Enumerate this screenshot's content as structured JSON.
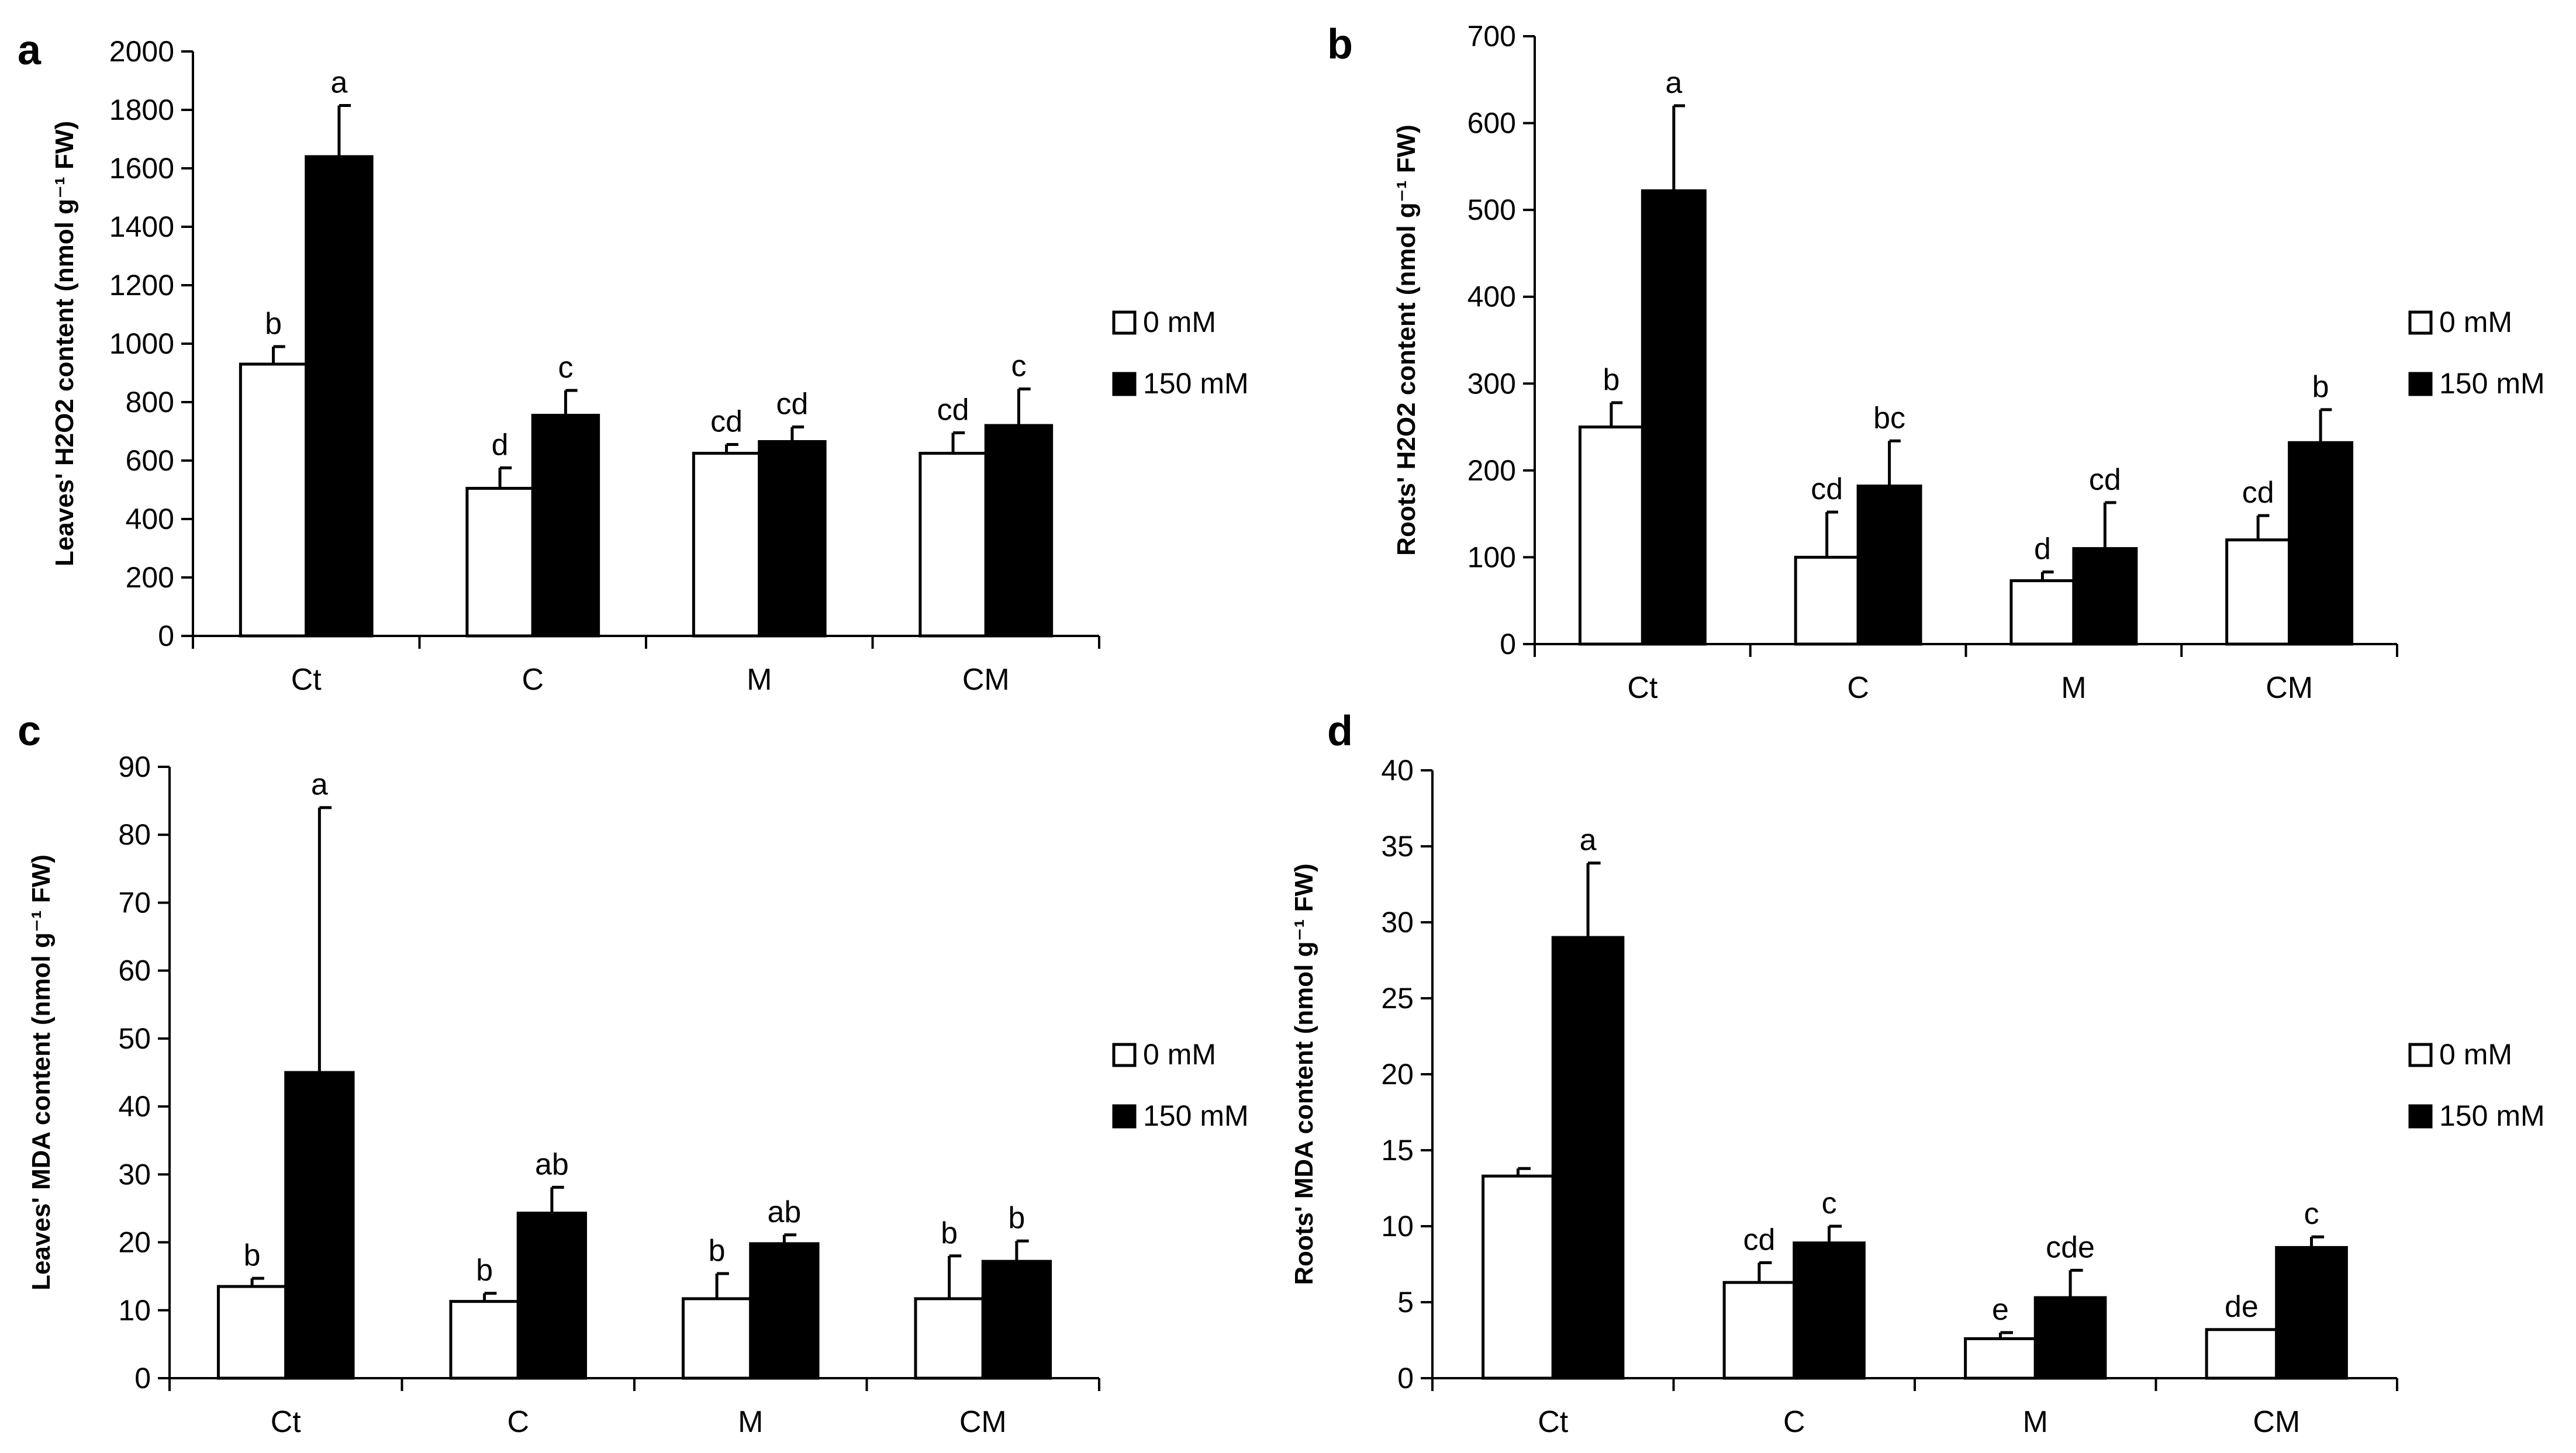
{
  "chart_data": [
    {
      "panel": "a",
      "type": "bar",
      "title": "",
      "xlabel": "",
      "ylabel": "Leaves' H2O2 content (nmol g⁻¹ FW)",
      "ylim": [
        0,
        2000
      ],
      "yticks": [
        0,
        200,
        400,
        600,
        800,
        1000,
        1200,
        1400,
        1600,
        1800,
        2000
      ],
      "categories": [
        "Ct",
        "C",
        "M",
        "CM"
      ],
      "legend": [
        "0 mM",
        "150 mM"
      ],
      "series": [
        {
          "name": "0 mM",
          "values": [
            930,
            505,
            625,
            625
          ],
          "errors": [
            60,
            70,
            30,
            70
          ],
          "letters": [
            "b",
            "d",
            "cd",
            "cd"
          ]
        },
        {
          "name": "150 mM",
          "values": [
            1640,
            755,
            665,
            720
          ],
          "errors": [
            175,
            85,
            50,
            125
          ],
          "letters": [
            "a",
            "c",
            "cd",
            "c"
          ]
        }
      ]
    },
    {
      "panel": "b",
      "type": "bar",
      "title": "",
      "xlabel": "",
      "ylabel": "Roots' H2O2 content (nmol g⁻¹ FW)",
      "ylim": [
        0,
        700
      ],
      "yticks": [
        0,
        100,
        200,
        300,
        400,
        500,
        600,
        700
      ],
      "categories": [
        "Ct",
        "C",
        "M",
        "CM"
      ],
      "legend": [
        "0 mM",
        "150 mM"
      ],
      "series": [
        {
          "name": "0 mM",
          "values": [
            250,
            100,
            73,
            120
          ],
          "errors": [
            28,
            52,
            10,
            28
          ],
          "letters": [
            "b",
            "cd",
            "d",
            "cd"
          ]
        },
        {
          "name": "150 mM",
          "values": [
            522,
            182,
            110,
            232
          ],
          "errors": [
            98,
            52,
            53,
            38
          ],
          "letters": [
            "a",
            "bc",
            "cd",
            "b"
          ]
        }
      ]
    },
    {
      "panel": "c",
      "type": "bar",
      "title": "",
      "xlabel": "",
      "ylabel": "Leaves' MDA content (nmol g⁻¹ FW)",
      "ylim": [
        0,
        90
      ],
      "yticks": [
        0,
        10,
        20,
        30,
        40,
        50,
        60,
        70,
        80,
        90
      ],
      "categories": [
        "Ct",
        "C",
        "M",
        "CM"
      ],
      "legend": [
        "0 mM",
        "150 mM"
      ],
      "series": [
        {
          "name": "0 mM",
          "values": [
            13.5,
            11.3,
            11.7,
            11.7
          ],
          "errors": [
            1.2,
            1.2,
            3.7,
            6.3
          ],
          "letters": [
            "b",
            "b",
            "b",
            "b"
          ]
        },
        {
          "name": "150 mM",
          "values": [
            45,
            24.3,
            19.8,
            17.2
          ],
          "errors": [
            39,
            3.8,
            1.3,
            3.0
          ],
          "letters": [
            "a",
            "ab",
            "ab",
            "b"
          ]
        }
      ]
    },
    {
      "panel": "d",
      "type": "bar",
      "title": "",
      "xlabel": "",
      "ylabel": "Roots' MDA content (nmol g⁻¹ FW)",
      "ylim": [
        0,
        40
      ],
      "yticks": [
        0,
        5,
        10,
        15,
        20,
        25,
        30,
        35,
        40
      ],
      "categories": [
        "Ct",
        "C",
        "M",
        "CM"
      ],
      "legend": [
        "0 mM",
        "150 mM"
      ],
      "series": [
        {
          "name": "0 mM",
          "values": [
            13.3,
            6.3,
            2.6,
            3.2
          ],
          "errors": [
            0.5,
            1.3,
            0.4,
            0.0
          ],
          "letters": [
            "",
            "cd",
            "e",
            "de"
          ]
        },
        {
          "name": "150 mM",
          "values": [
            29,
            8.9,
            5.3,
            8.6
          ],
          "errors": [
            4.9,
            1.1,
            1.8,
            0.7
          ],
          "letters": [
            "a",
            "c",
            "cde",
            "c"
          ]
        }
      ]
    }
  ]
}
